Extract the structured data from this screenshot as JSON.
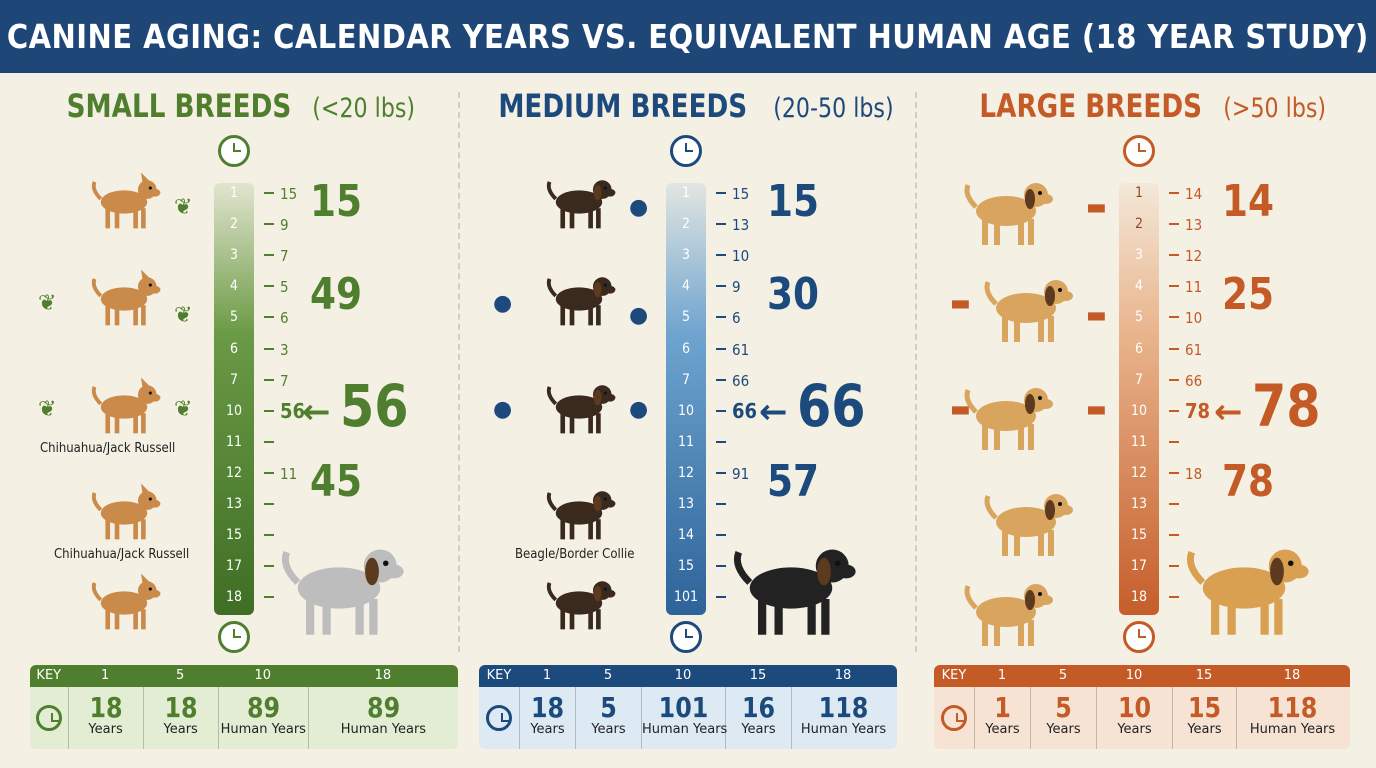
{
  "title": "CANINE AGING: CALENDAR YEARS VS. EQUIVALENT HUMAN AGE (18 YEAR STUDY)",
  "colors": {
    "small": "#4f7f2e",
    "medium": "#1c4a7c",
    "large": "#c45a26"
  },
  "panels": [
    {
      "id": "small",
      "title": "SMALL BREEDS",
      "subtitle": "(<20 lbs)",
      "ruler_years": [
        "1",
        "2",
        "3",
        "4",
        "5",
        "6",
        "7",
        "10",
        "11",
        "12",
        "13",
        "15",
        "17",
        "18"
      ],
      "side_numbers": [
        "15",
        "9",
        "7",
        "5",
        "6",
        "3",
        "7",
        "56",
        "",
        "11",
        "",
        "",
        "",
        ""
      ],
      "big_numbers": [
        "15",
        "49",
        "56",
        "45"
      ],
      "captions": [
        "Chihuahua/Jack Russell",
        "Chihuahua/Jack Russell"
      ],
      "key": {
        "label": "KEY",
        "headers": [
          "1",
          "5",
          "10",
          "18"
        ],
        "values": [
          "18",
          "18",
          "89",
          "89"
        ],
        "units": [
          "Years",
          "Years",
          "Human Years",
          "Human Years"
        ]
      }
    },
    {
      "id": "medium",
      "title": "MEDIUM BREEDS",
      "subtitle": "(20-50 lbs)",
      "ruler_years": [
        "1",
        "2",
        "3",
        "4",
        "5",
        "6",
        "7",
        "10",
        "11",
        "12",
        "13",
        "14",
        "15",
        "101"
      ],
      "side_numbers": [
        "15",
        "13",
        "10",
        "9",
        "6",
        "61",
        "66",
        "66",
        "",
        "91",
        "",
        "",
        "",
        ""
      ],
      "big_numbers": [
        "15",
        "30",
        "66",
        "57"
      ],
      "captions": [
        "Beagle/Border Collie"
      ],
      "key": {
        "label": "KEY",
        "headers": [
          "1",
          "5",
          "10",
          "15",
          "18"
        ],
        "values": [
          "18",
          "5",
          "101",
          "16",
          "118"
        ],
        "units": [
          "Years",
          "Years",
          "Human Years",
          "Years",
          "Human Years"
        ]
      }
    },
    {
      "id": "large",
      "title": "LARGE BREEDS",
      "subtitle": "(>50 lbs)",
      "ruler_years": [
        "1",
        "2",
        "3",
        "4",
        "5",
        "6",
        "7",
        "10",
        "11",
        "12",
        "13",
        "15",
        "17",
        "18"
      ],
      "side_numbers": [
        "14",
        "13",
        "12",
        "11",
        "10",
        "61",
        "66",
        "78",
        "",
        "18",
        "",
        "",
        "",
        ""
      ],
      "big_numbers": [
        "14",
        "25",
        "78",
        "78"
      ],
      "captions": [],
      "key": {
        "label": "KEY",
        "headers": [
          "1",
          "5",
          "10",
          "15",
          "18"
        ],
        "values": [
          "1",
          "5",
          "10",
          "15",
          "118"
        ],
        "units": [
          "Years",
          "Years",
          "Years",
          "Years",
          "Human Years"
        ]
      }
    }
  ]
}
